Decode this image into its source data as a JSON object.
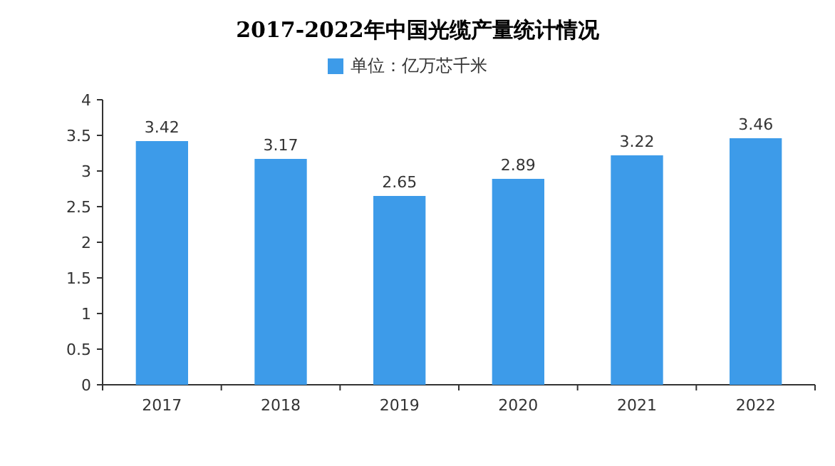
{
  "chart_data": {
    "type": "bar",
    "title": "2017-2022年中国光缆产量统计情况",
    "categories": [
      "2017",
      "2018",
      "2019",
      "2020",
      "2021",
      "2022"
    ],
    "series": [
      {
        "name": "单位：亿万芯千米",
        "color": "#3d9be9",
        "values": [
          3.42,
          3.17,
          2.65,
          2.89,
          3.22,
          3.46
        ]
      }
    ],
    "ylim": [
      0,
      4
    ],
    "yticks": [
      0,
      0.5,
      1,
      1.5,
      2,
      2.5,
      3,
      3.5,
      4
    ],
    "data_labels": true,
    "legend": "top",
    "grid": false
  }
}
